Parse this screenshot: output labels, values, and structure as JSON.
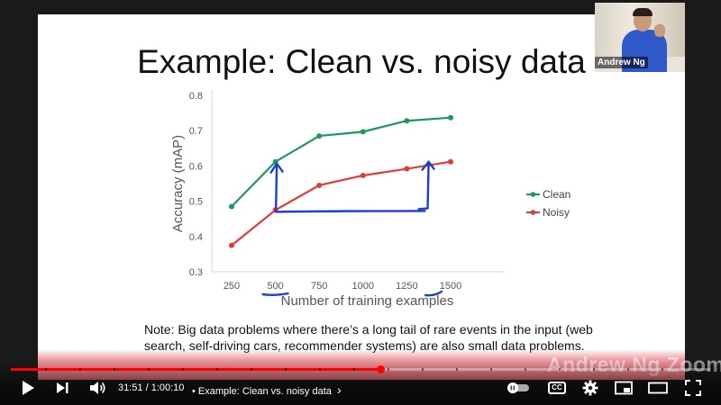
{
  "slide": {
    "title": "Example: Clean vs. noisy data",
    "note_line1": "Note: Big data problems where there’s a long tail of rare events in the input (web",
    "note_line2": "search, self-driving cars, recommender systems) are also small data problems."
  },
  "webcam": {
    "name": "Andrew Ng"
  },
  "watermark": {
    "text": "Andrew Ng Zoom"
  },
  "chart_data": {
    "type": "line",
    "title": "",
    "xlabel": "Number of training examples",
    "ylabel": "Accuracy (mAP)",
    "x": [
      250,
      500,
      750,
      1000,
      1250,
      1500
    ],
    "x_tick_labels": [
      "250",
      "500",
      "750",
      "1000",
      "1250",
      "1500"
    ],
    "y_tick_labels": [
      "0.3",
      "0.4",
      "0.5",
      "0.6",
      "0.7",
      "0.8"
    ],
    "ylim": [
      0.3,
      0.8
    ],
    "grid": false,
    "legend_position": "right",
    "series": [
      {
        "name": "Clean",
        "color": "#1a9a5a",
        "values": [
          0.485,
          0.612,
          0.685,
          0.697,
          0.728,
          0.737
        ]
      },
      {
        "name": "Noisy",
        "color": "#e53935",
        "values": [
          0.375,
          0.475,
          0.545,
          0.573,
          0.592,
          0.612
        ]
      }
    ],
    "annotation_color": "#1d3fd0"
  },
  "player": {
    "current_time": "31:51",
    "duration": "1:00:10",
    "time_separator": " / ",
    "chapter_title": "Example: Clean vs. noisy data",
    "chapter_chevron": "›",
    "progress_fraction": 0.529,
    "buffered_fraction": 0.535,
    "icons": {
      "play": "play-icon",
      "next": "next-icon",
      "volume": "volume-icon",
      "autoplay": "autoplay-toggle-icon",
      "captions": "captions-icon",
      "settings": "gear-icon",
      "miniplayer": "miniplayer-icon",
      "theater": "theater-icon",
      "fullscreen": "fullscreen-icon"
    },
    "captions_label": "CC",
    "accent_color": "#ff0000"
  }
}
